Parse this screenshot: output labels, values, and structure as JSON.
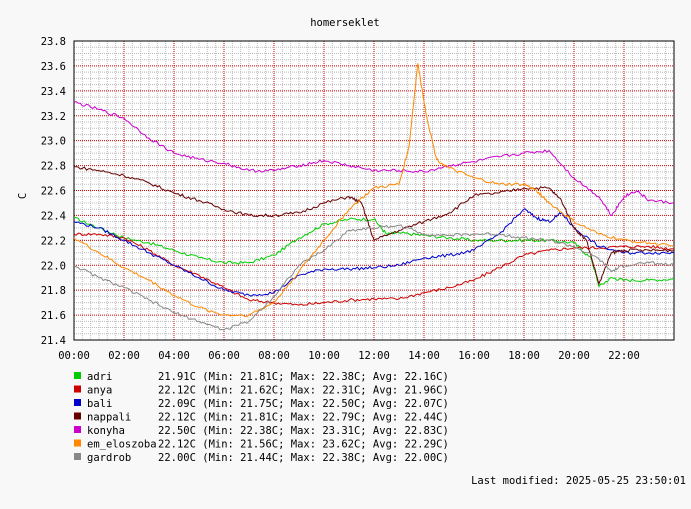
{
  "chart_data": {
    "type": "line",
    "title": "homerseklet",
    "ylabel": "C",
    "xlabel": "",
    "ylim": [
      21.4,
      23.8
    ],
    "xlim": [
      0,
      24
    ],
    "grid": true,
    "y_ticks": [
      "21.4",
      "21.6",
      "21.8",
      "22.0",
      "22.2",
      "22.4",
      "22.6",
      "22.8",
      "23.0",
      "23.2",
      "23.4",
      "23.6",
      "23.8"
    ],
    "x_ticks": [
      "00:00",
      "02:00",
      "04:00",
      "06:00",
      "08:00",
      "10:00",
      "12:00",
      "14:00",
      "16:00",
      "18:00",
      "20:00",
      "22:00"
    ],
    "legend_position": "bottom-left",
    "series": [
      {
        "name": "adri",
        "color": "#00cc00",
        "stats": "21.91C (Min: 21.81C; Max: 22.38C; Avg: 22.16C)",
        "points": [
          [
            0,
            22.38
          ],
          [
            1,
            22.3
          ],
          [
            2,
            22.22
          ],
          [
            3,
            22.18
          ],
          [
            4,
            22.12
          ],
          [
            5,
            22.06
          ],
          [
            6,
            22.02
          ],
          [
            7,
            22.02
          ],
          [
            8,
            22.08
          ],
          [
            9,
            22.22
          ],
          [
            10,
            22.33
          ],
          [
            11,
            22.37
          ],
          [
            12,
            22.37
          ],
          [
            12.5,
            22.25
          ],
          [
            13,
            22.26
          ],
          [
            14,
            22.24
          ],
          [
            15,
            22.22
          ],
          [
            16,
            22.2
          ],
          [
            17,
            22.2
          ],
          [
            18,
            22.2
          ],
          [
            19,
            22.2
          ],
          [
            20,
            22.18
          ],
          [
            20.7,
            22.05
          ],
          [
            21,
            21.83
          ],
          [
            21.5,
            21.9
          ],
          [
            22,
            21.88
          ],
          [
            23,
            21.88
          ],
          [
            24,
            21.89
          ]
        ]
      },
      {
        "name": "anya",
        "color": "#cc0000",
        "stats": "22.12C (Min: 21.62C; Max: 22.31C; Avg: 21.96C)",
        "points": [
          [
            0,
            22.25
          ],
          [
            1,
            22.25
          ],
          [
            2,
            22.22
          ],
          [
            3,
            22.12
          ],
          [
            4,
            22.0
          ],
          [
            5,
            21.92
          ],
          [
            6,
            21.82
          ],
          [
            7,
            21.72
          ],
          [
            8,
            21.7
          ],
          [
            9,
            21.68
          ],
          [
            10,
            21.7
          ],
          [
            11,
            21.72
          ],
          [
            12,
            21.73
          ],
          [
            13,
            21.73
          ],
          [
            14,
            21.78
          ],
          [
            15,
            21.82
          ],
          [
            16,
            21.88
          ],
          [
            17,
            21.98
          ],
          [
            18,
            22.08
          ],
          [
            19,
            22.12
          ],
          [
            20,
            22.14
          ],
          [
            21,
            22.14
          ],
          [
            22,
            22.15
          ],
          [
            23,
            22.15
          ],
          [
            24,
            22.13
          ]
        ]
      },
      {
        "name": "bali",
        "color": "#0000cc",
        "stats": "22.09C (Min: 21.75C; Max: 22.50C; Avg: 22.07C)",
        "points": [
          [
            0,
            22.35
          ],
          [
            1,
            22.3
          ],
          [
            2,
            22.2
          ],
          [
            3,
            22.1
          ],
          [
            4,
            22.0
          ],
          [
            5,
            21.9
          ],
          [
            6,
            21.8
          ],
          [
            7,
            21.76
          ],
          [
            8,
            21.78
          ],
          [
            9,
            21.92
          ],
          [
            10,
            21.97
          ],
          [
            11,
            21.97
          ],
          [
            12,
            21.98
          ],
          [
            13,
            22.0
          ],
          [
            14,
            22.06
          ],
          [
            15,
            22.08
          ],
          [
            16,
            22.12
          ],
          [
            17,
            22.25
          ],
          [
            18,
            22.45
          ],
          [
            18.5,
            22.38
          ],
          [
            19,
            22.35
          ],
          [
            19.5,
            22.42
          ],
          [
            20,
            22.3
          ],
          [
            21,
            22.15
          ],
          [
            22,
            22.1
          ],
          [
            23,
            22.1
          ],
          [
            24,
            22.1
          ]
        ]
      },
      {
        "name": "nappali",
        "color": "#660000",
        "stats": "22.12C (Min: 21.81C; Max: 22.79C; Avg: 22.44C)",
        "points": [
          [
            0,
            22.79
          ],
          [
            1,
            22.76
          ],
          [
            2,
            22.72
          ],
          [
            3,
            22.66
          ],
          [
            4,
            22.58
          ],
          [
            5,
            22.52
          ],
          [
            6,
            22.45
          ],
          [
            7,
            22.4
          ],
          [
            8,
            22.4
          ],
          [
            9,
            22.42
          ],
          [
            10,
            22.5
          ],
          [
            11,
            22.55
          ],
          [
            11.5,
            22.5
          ],
          [
            12,
            22.2
          ],
          [
            13,
            22.28
          ],
          [
            14,
            22.35
          ],
          [
            15,
            22.42
          ],
          [
            16,
            22.56
          ],
          [
            17,
            22.58
          ],
          [
            18,
            22.62
          ],
          [
            19,
            22.62
          ],
          [
            19.5,
            22.52
          ],
          [
            20,
            22.3
          ],
          [
            20.5,
            22.2
          ],
          [
            21,
            21.85
          ],
          [
            21.5,
            22.1
          ],
          [
            22,
            22.12
          ],
          [
            23,
            22.12
          ],
          [
            24,
            22.12
          ]
        ]
      },
      {
        "name": "konyha",
        "color": "#cc00cc",
        "stats": "22.50C (Min: 22.38C; Max: 23.31C; Avg: 22.83C)",
        "points": [
          [
            0,
            23.31
          ],
          [
            1,
            23.25
          ],
          [
            2,
            23.18
          ],
          [
            3,
            23.02
          ],
          [
            4,
            22.9
          ],
          [
            5,
            22.85
          ],
          [
            6,
            22.82
          ],
          [
            7,
            22.76
          ],
          [
            8,
            22.76
          ],
          [
            9,
            22.8
          ],
          [
            10,
            22.84
          ],
          [
            11,
            22.8
          ],
          [
            12,
            22.76
          ],
          [
            13,
            22.76
          ],
          [
            14,
            22.75
          ],
          [
            15,
            22.8
          ],
          [
            16,
            22.83
          ],
          [
            17,
            22.87
          ],
          [
            18,
            22.9
          ],
          [
            19,
            22.92
          ],
          [
            20,
            22.7
          ],
          [
            21,
            22.55
          ],
          [
            21.5,
            22.4
          ],
          [
            22,
            22.55
          ],
          [
            22.5,
            22.6
          ],
          [
            23,
            22.52
          ],
          [
            24,
            22.5
          ]
        ]
      },
      {
        "name": "em_eloszoba",
        "color": "#ff8800",
        "stats": "22.12C (Min: 21.56C; Max: 23.62C; Avg: 22.29C)",
        "points": [
          [
            0,
            22.22
          ],
          [
            1,
            22.1
          ],
          [
            2,
            21.98
          ],
          [
            3,
            21.88
          ],
          [
            4,
            21.76
          ],
          [
            5,
            21.66
          ],
          [
            6,
            21.6
          ],
          [
            7,
            21.6
          ],
          [
            8,
            21.7
          ],
          [
            9,
            21.95
          ],
          [
            10,
            22.2
          ],
          [
            11,
            22.45
          ],
          [
            12,
            22.62
          ],
          [
            13,
            22.65
          ],
          [
            13.4,
            22.95
          ],
          [
            13.75,
            23.62
          ],
          [
            14.1,
            23.2
          ],
          [
            14.5,
            22.85
          ],
          [
            15,
            22.78
          ],
          [
            16,
            22.7
          ],
          [
            17,
            22.65
          ],
          [
            18,
            22.65
          ],
          [
            18.5,
            22.6
          ],
          [
            19,
            22.5
          ],
          [
            20,
            22.35
          ],
          [
            21,
            22.25
          ],
          [
            22,
            22.2
          ],
          [
            23,
            22.18
          ],
          [
            24,
            22.15
          ]
        ]
      },
      {
        "name": "gardrob",
        "color": "#888888",
        "stats": "22.00C (Min: 21.44C; Max: 22.38C; Avg: 22.00C)",
        "points": [
          [
            0,
            22.0
          ],
          [
            1,
            21.9
          ],
          [
            2,
            21.82
          ],
          [
            3,
            21.72
          ],
          [
            4,
            21.62
          ],
          [
            5,
            21.55
          ],
          [
            6,
            21.48
          ],
          [
            7,
            21.55
          ],
          [
            8,
            21.75
          ],
          [
            9,
            22.0
          ],
          [
            10,
            22.12
          ],
          [
            11,
            22.28
          ],
          [
            12,
            22.3
          ],
          [
            13,
            22.32
          ],
          [
            14,
            22.25
          ],
          [
            15,
            22.24
          ],
          [
            16,
            22.25
          ],
          [
            17,
            22.25
          ],
          [
            18,
            22.22
          ],
          [
            19,
            22.2
          ],
          [
            20,
            22.15
          ],
          [
            21,
            22.05
          ],
          [
            21.5,
            21.95
          ],
          [
            22,
            22.0
          ],
          [
            23,
            22.02
          ],
          [
            24,
            22.0
          ]
        ]
      }
    ]
  },
  "footer": {
    "last_modified": "Last modified: 2025-05-25 23:50:01"
  }
}
